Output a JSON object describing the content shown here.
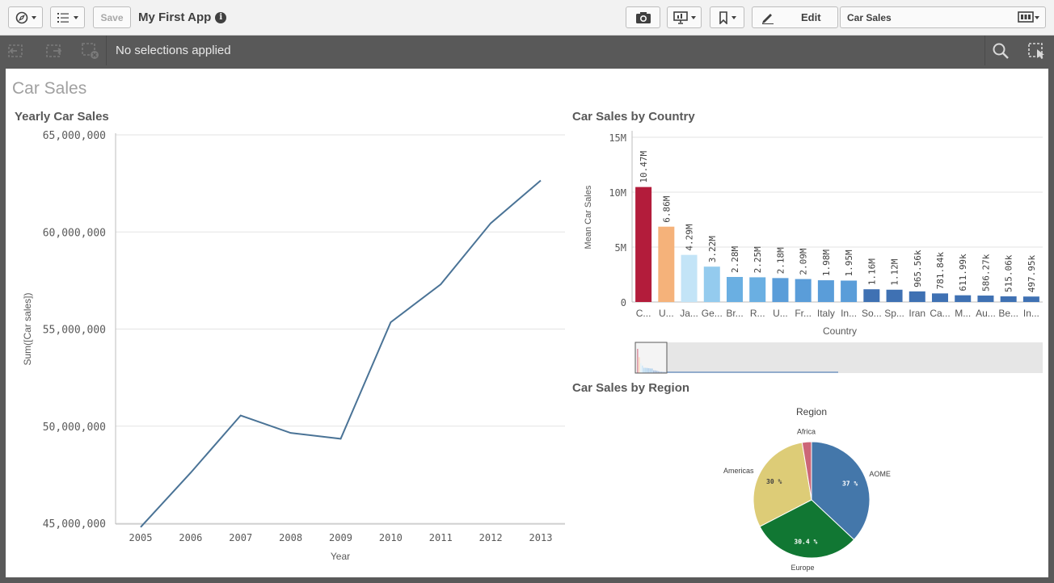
{
  "toolbar": {
    "save_label": "Save",
    "app_title": "My First App",
    "info_glyph": "i",
    "edit_label": "Edit",
    "sheet_name": "Car Sales"
  },
  "selections": {
    "text": "No selections applied"
  },
  "sheet": {
    "title": "Car Sales"
  },
  "line_chart": {
    "title": "Yearly Car Sales"
  },
  "bar_chart": {
    "title": "Car Sales by Country"
  },
  "pie_chart": {
    "title": "Car Sales by Region"
  },
  "chart_data": [
    {
      "type": "line",
      "x": [
        "2005",
        "2006",
        "2007",
        "2008",
        "2009",
        "2010",
        "2011",
        "2012",
        "2013"
      ],
      "series": [
        {
          "values": [
            44800000,
            47600000,
            50550000,
            49650000,
            49350000,
            55350000,
            57300000,
            60450000,
            62650000
          ]
        }
      ],
      "xlabel": "Year",
      "ylabel": "Sum([Car sales])",
      "yticks": [
        "45,000,000",
        "50,000,000",
        "55,000,000",
        "60,000,000",
        "65,000,000"
      ],
      "ylim": [
        45000000,
        65000000
      ],
      "color": "#4a7396"
    },
    {
      "type": "bar",
      "categories": [
        "C...",
        "U...",
        "Ja...",
        "Ge...",
        "Br...",
        "R...",
        "U...",
        "Fr...",
        "Italy",
        "In...",
        "So...",
        "Sp...",
        "Iran",
        "Ca...",
        "M...",
        "Au...",
        "Be...",
        "In..."
      ],
      "values": [
        10470000,
        6860000,
        4290000,
        3220000,
        2280000,
        2250000,
        2180000,
        2090000,
        1980000,
        1950000,
        1160000,
        1120000,
        965560,
        781840,
        611990,
        586270,
        515060,
        497950
      ],
      "data_labels": [
        "10.47M",
        "6.86M",
        "4.29M",
        "3.22M",
        "2.28M",
        "2.25M",
        "2.18M",
        "2.09M",
        "1.98M",
        "1.95M",
        "1.16M",
        "1.12M",
        "965.56k",
        "781.84k",
        "611.99k",
        "586.27k",
        "515.06k",
        "497.95k"
      ],
      "colors": [
        "#b31c3b",
        "#f5b27a",
        "#c3e4f7",
        "#94cbee",
        "#6aafe2",
        "#6aafe2",
        "#5a9dd9",
        "#5a9dd9",
        "#5a9dd9",
        "#5a9dd9",
        "#3f71b3",
        "#3f71b3",
        "#3f71b3",
        "#3f71b3",
        "#3f71b3",
        "#3f71b3",
        "#3f71b3",
        "#3f71b3"
      ],
      "xlabel": "Country",
      "ylabel": "Mean Car Sales",
      "yticks": [
        "0",
        "5M",
        "10M",
        "15M"
      ],
      "ylim": [
        0,
        15000000
      ]
    },
    {
      "type": "pie",
      "title": "Region",
      "slices": [
        {
          "label": "AOME",
          "value": 37,
          "pct_label": "37 %",
          "color": "#4477aa"
        },
        {
          "label": "Europe",
          "value": 30.4,
          "pct_label": "30.4 %",
          "color": "#117733"
        },
        {
          "label": "Americas",
          "value": 30,
          "pct_label": "30 %",
          "color": "#ddcc77"
        },
        {
          "label": "Africa",
          "value": 2.6,
          "pct_label": "",
          "color": "#cc6677"
        }
      ]
    }
  ]
}
